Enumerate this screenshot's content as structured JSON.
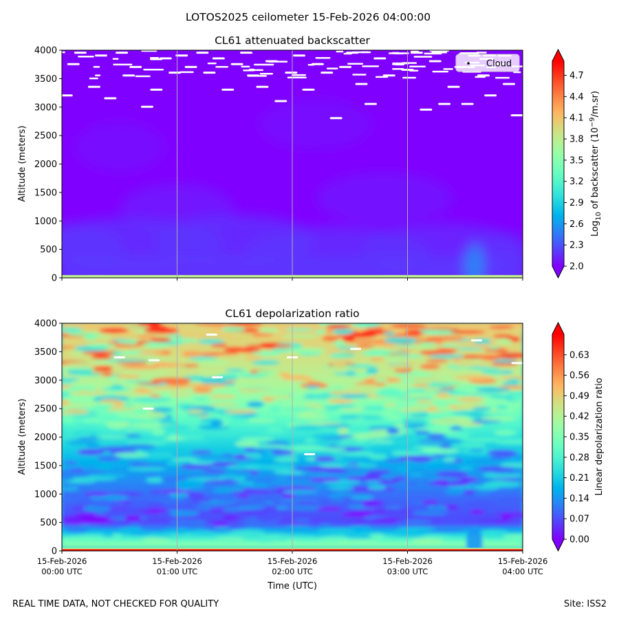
{
  "suptitle": "LOTOS2025 ceilometer 15-Feb-2026 04:00:00",
  "footer": {
    "left": "REAL TIME DATA, NOT CHECKED FOR QUALITY",
    "right": "Site: ISS2"
  },
  "chart_data": [
    {
      "type": "heatmap",
      "title": "CL61 attenuated backscatter",
      "ylabel": "Altitude (meters)",
      "ylim": [
        0,
        4000
      ],
      "yticks": [
        0,
        500,
        1000,
        1500,
        2000,
        2500,
        3000,
        3500,
        4000
      ],
      "xlim_hours_utc": [
        0,
        4
      ],
      "xticks": [
        {
          "value": 0,
          "label": [
            "",
            ""
          ]
        },
        {
          "value": 1,
          "label": [
            "",
            ""
          ]
        },
        {
          "value": 2,
          "label": [
            "",
            ""
          ]
        },
        {
          "value": 3,
          "label": [
            "",
            ""
          ]
        },
        {
          "value": 4,
          "label": [
            "",
            ""
          ]
        }
      ],
      "vertical_gridlines_at_hours": [
        1,
        2,
        3
      ],
      "colormap": "rainbow",
      "colorbar": {
        "label_parts": [
          "Log",
          "10",
          " of backscatter (10",
          "−9",
          "/m.sr)"
        ],
        "range": [
          2.0,
          4.9
        ],
        "ticks": [
          "2.0",
          "2.3",
          "2.6",
          "2.9",
          "3.2",
          "3.5",
          "3.8",
          "4.1",
          "4.4",
          "4.7"
        ],
        "extend": "both"
      },
      "legend": {
        "entries": [
          "Cloud"
        ],
        "placement": "top-right",
        "marker_color": "#000000"
      },
      "description_values": {
        "background_level": 2.0,
        "surface_band_level": 3.8,
        "near_surface_level": 2.2,
        "cloud_mask_altitude_range_m": [
          2800,
          4000
        ]
      },
      "clouds": [
        {
          "t": 0.04,
          "z": 3200
        },
        {
          "t": 0.1,
          "z": 3750
        },
        {
          "t": 0.16,
          "z": 3950
        },
        {
          "t": 0.28,
          "z": 3350
        },
        {
          "t": 0.34,
          "z": 3900
        },
        {
          "t": 0.42,
          "z": 3150
        },
        {
          "t": 0.52,
          "z": 3950
        },
        {
          "t": 0.58,
          "z": 3550
        },
        {
          "t": 0.64,
          "z": 3700
        },
        {
          "t": 0.74,
          "z": 3000
        },
        {
          "t": 0.82,
          "z": 3300
        },
        {
          "t": 0.9,
          "z": 3850
        },
        {
          "t": 0.98,
          "z": 3600
        },
        {
          "t": 1.04,
          "z": 3900
        },
        {
          "t": 1.12,
          "z": 3700
        },
        {
          "t": 1.22,
          "z": 3950
        },
        {
          "t": 1.28,
          "z": 3600
        },
        {
          "t": 1.36,
          "z": 3850
        },
        {
          "t": 1.44,
          "z": 3300
        },
        {
          "t": 1.52,
          "z": 3750
        },
        {
          "t": 1.6,
          "z": 3950
        },
        {
          "t": 1.66,
          "z": 3550
        },
        {
          "t": 1.74,
          "z": 3350
        },
        {
          "t": 1.82,
          "z": 3800
        },
        {
          "t": 1.9,
          "z": 3100
        },
        {
          "t": 1.99,
          "z": 3600
        },
        {
          "t": 2.06,
          "z": 3900
        },
        {
          "t": 2.14,
          "z": 3300
        },
        {
          "t": 2.22,
          "z": 3750
        },
        {
          "t": 2.3,
          "z": 3600
        },
        {
          "t": 2.38,
          "z": 2800
        },
        {
          "t": 2.46,
          "z": 3700
        },
        {
          "t": 2.52,
          "z": 3950
        },
        {
          "t": 2.6,
          "z": 3400
        },
        {
          "t": 2.68,
          "z": 3050
        },
        {
          "t": 2.76,
          "z": 3850
        },
        {
          "t": 2.84,
          "z": 3550
        },
        {
          "t": 2.92,
          "z": 3750
        },
        {
          "t": 3.0,
          "z": 3650
        },
        {
          "t": 3.08,
          "z": 3950
        },
        {
          "t": 3.16,
          "z": 2950
        },
        {
          "t": 3.24,
          "z": 3800
        },
        {
          "t": 3.32,
          "z": 3050
        },
        {
          "t": 3.4,
          "z": 3350
        },
        {
          "t": 3.46,
          "z": 3700
        },
        {
          "t": 3.52,
          "z": 3050
        },
        {
          "t": 3.58,
          "z": 3900
        },
        {
          "t": 3.66,
          "z": 3550
        },
        {
          "t": 3.72,
          "z": 3200
        },
        {
          "t": 3.8,
          "z": 3750
        },
        {
          "t": 3.88,
          "z": 3400
        },
        {
          "t": 3.95,
          "z": 2850
        }
      ]
    },
    {
      "type": "heatmap",
      "title": "CL61 depolarization ratio",
      "ylabel": "Altitude (meters)",
      "xlabel": "Time (UTC)",
      "ylim": [
        0,
        4000
      ],
      "yticks": [
        0,
        500,
        1000,
        1500,
        2000,
        2500,
        3000,
        3500,
        4000
      ],
      "xlim_hours_utc": [
        0,
        4
      ],
      "xticks": [
        {
          "value": 0,
          "label": [
            "15-Feb-2026",
            "00:00 UTC"
          ]
        },
        {
          "value": 1,
          "label": [
            "15-Feb-2026",
            "01:00 UTC"
          ]
        },
        {
          "value": 2,
          "label": [
            "15-Feb-2026",
            "02:00 UTC"
          ]
        },
        {
          "value": 3,
          "label": [
            "15-Feb-2026",
            "03:00 UTC"
          ]
        },
        {
          "value": 4,
          "label": [
            "15-Feb-2026",
            "04:00 UTC"
          ]
        }
      ],
      "vertical_gridlines_at_hours": [
        1,
        2,
        3
      ],
      "colormap": "rainbow",
      "colorbar": {
        "label_parts": [
          "Linear depolarization ratio"
        ],
        "range": [
          0.0,
          0.7
        ],
        "ticks": [
          "0.00",
          "0.07",
          "0.14",
          "0.21",
          "0.28",
          "0.35",
          "0.42",
          "0.49",
          "0.56",
          "0.63"
        ],
        "extend": "both"
      },
      "description_values": {
        "profile_altitude_m": [
          0,
          50,
          500,
          1000,
          1500,
          2000,
          2500,
          3000,
          3500,
          4000
        ],
        "profile_ratio": [
          0.7,
          0.42,
          0.06,
          0.1,
          0.16,
          0.24,
          0.34,
          0.42,
          0.47,
          0.5
        ]
      }
    }
  ]
}
